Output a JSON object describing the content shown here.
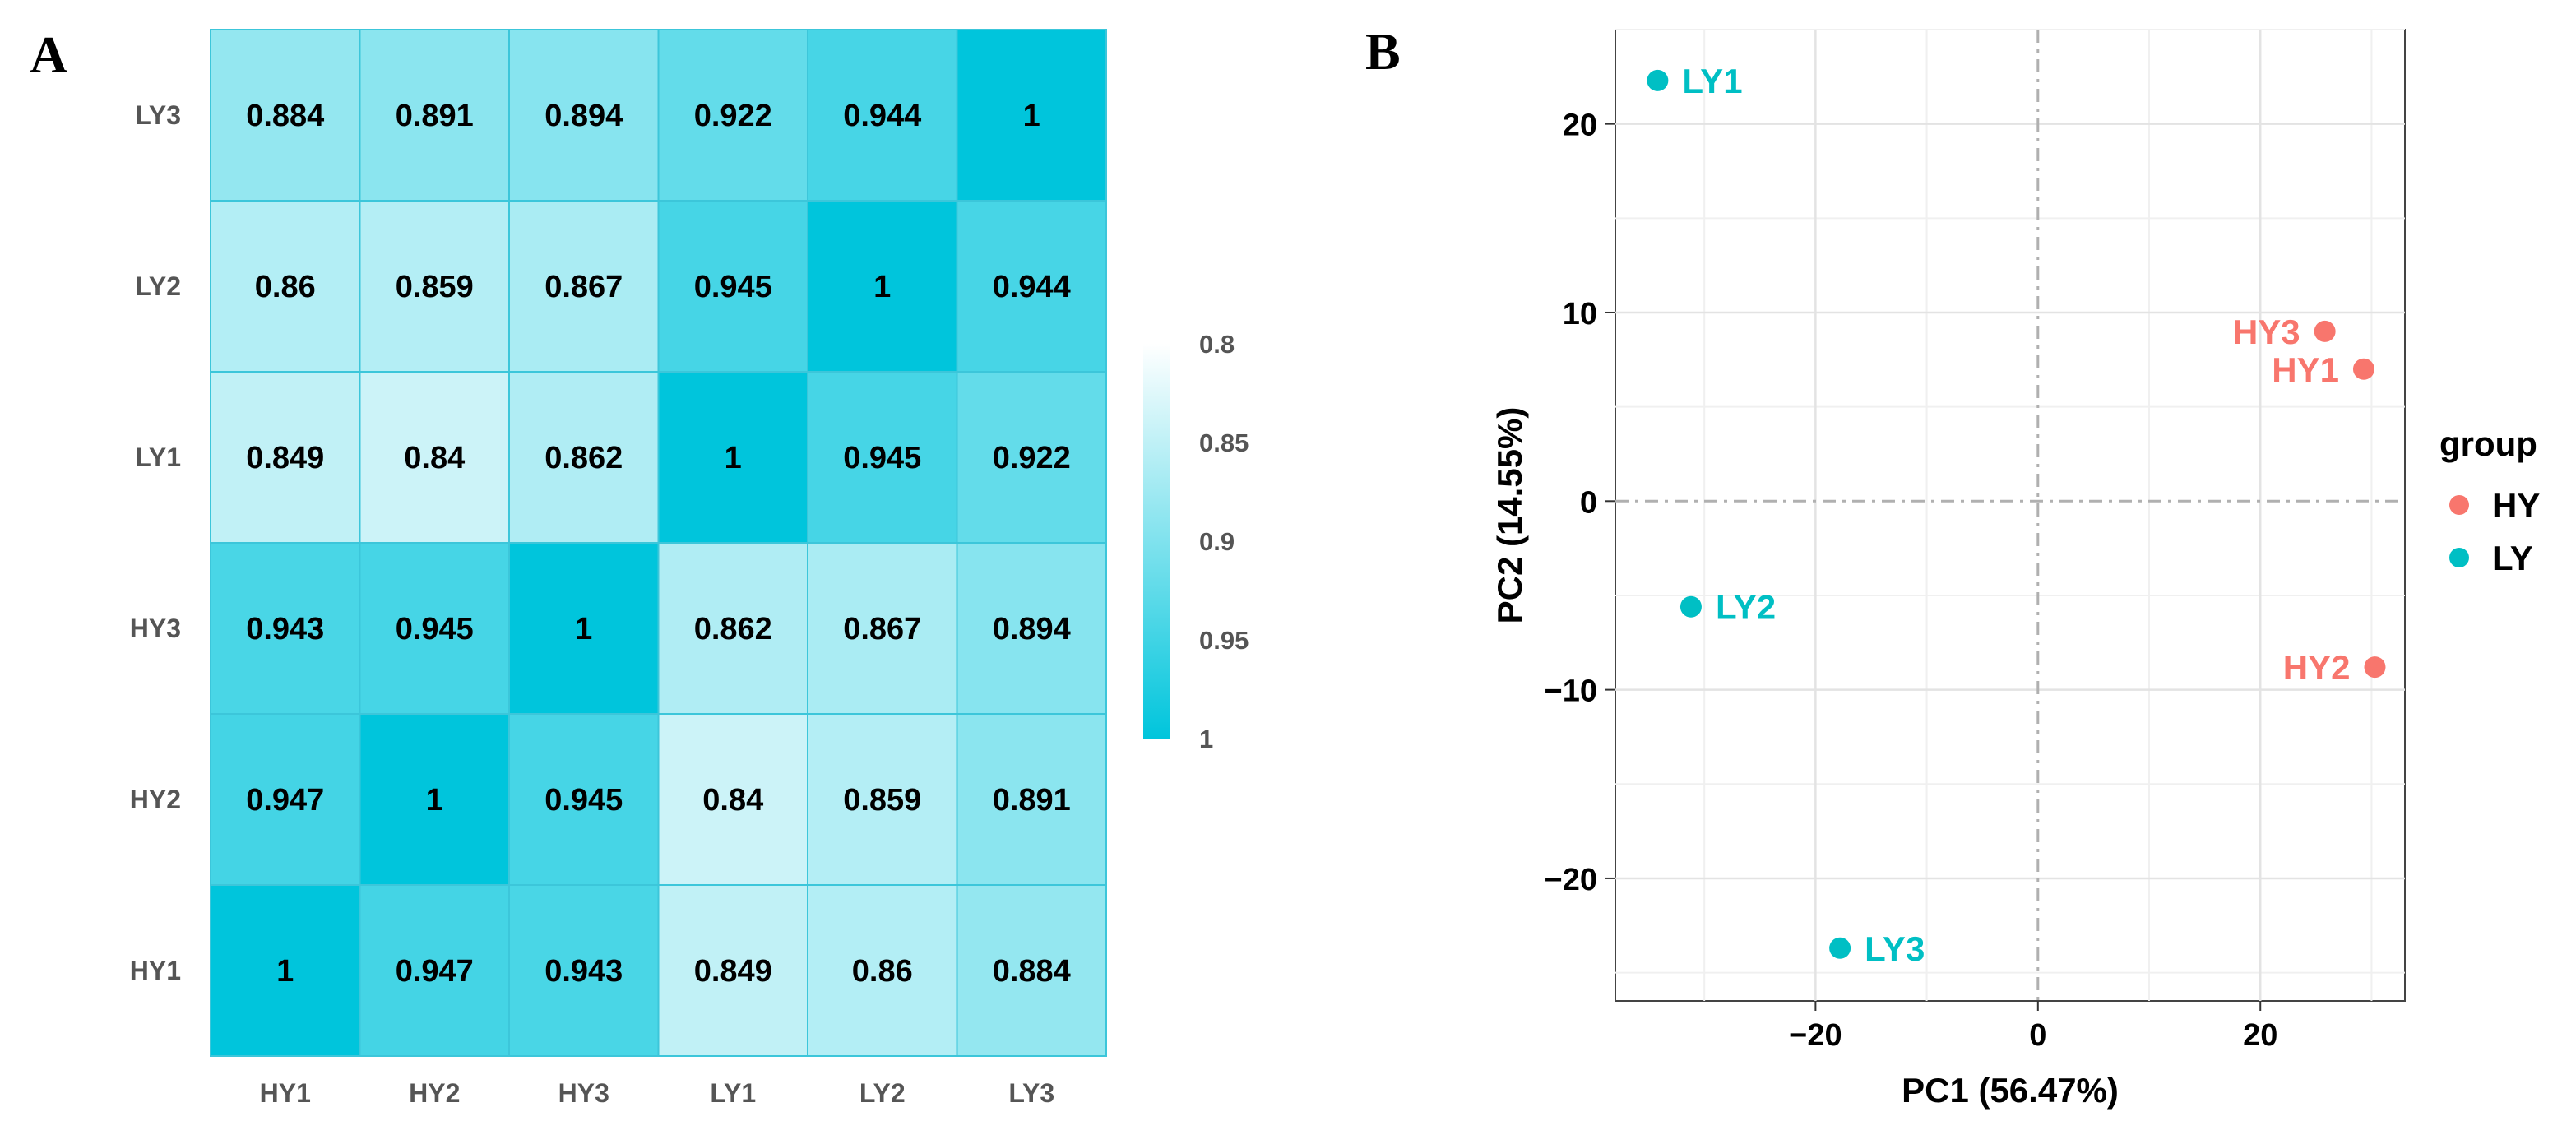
{
  "panels": {
    "a_label": "A",
    "b_label": "B"
  },
  "chart_data": [
    {
      "type": "heatmap",
      "title": "",
      "x_categories": [
        "HY1",
        "HY2",
        "HY3",
        "LY1",
        "LY2",
        "LY3"
      ],
      "y_categories_top_to_bottom": [
        "LY3",
        "LY2",
        "LY1",
        "HY3",
        "HY2",
        "HY1"
      ],
      "values": [
        [
          "0.884",
          "0.891",
          "0.894",
          "0.922",
          "0.944",
          "1"
        ],
        [
          "0.86",
          "0.859",
          "0.867",
          "0.945",
          "1",
          "0.944"
        ],
        [
          "0.849",
          "0.84",
          "0.862",
          "1",
          "0.945",
          "0.922"
        ],
        [
          "0.943",
          "0.945",
          "1",
          "0.862",
          "0.867",
          "0.894"
        ],
        [
          "0.947",
          "1",
          "0.945",
          "0.84",
          "0.859",
          "0.891"
        ],
        [
          "1",
          "0.947",
          "0.943",
          "0.849",
          "0.86",
          "0.884"
        ]
      ],
      "colorbar": {
        "range": [
          0.8,
          1
        ],
        "ticks": [
          "0.8",
          "0.85",
          "0.9",
          "0.95",
          "1"
        ],
        "low_color": "#ffffff",
        "high_color": "#00c5dc"
      }
    },
    {
      "type": "scatter",
      "title": "",
      "xlabel": "PC1 (56.47%)",
      "ylabel": "PC2 (14.55%)",
      "xlim": [
        -38,
        33
      ],
      "ylim": [
        -26.5,
        25
      ],
      "x_ticks": [
        "−20",
        "0",
        "20"
      ],
      "y_ticks": [
        "20",
        "10",
        "0",
        "−10",
        "−20"
      ],
      "grid": true,
      "legend": {
        "title": "group",
        "position": "right",
        "entries": [
          {
            "name": "HY",
            "color": "#f8766d"
          },
          {
            "name": "LY",
            "color": "#00bfc4"
          }
        ]
      },
      "points": [
        {
          "label": "LY1",
          "group": "LY",
          "x": -34.2,
          "y": 22.3
        },
        {
          "label": "HY3",
          "group": "HY",
          "x": 25.8,
          "y": 9.0
        },
        {
          "label": "HY1",
          "group": "HY",
          "x": 29.3,
          "y": 7.0
        },
        {
          "label": "LY2",
          "group": "LY",
          "x": -31.2,
          "y": -5.6
        },
        {
          "label": "HY2",
          "group": "HY",
          "x": 30.3,
          "y": -8.8
        },
        {
          "label": "LY3",
          "group": "LY",
          "x": -17.8,
          "y": -23.7
        }
      ]
    }
  ]
}
